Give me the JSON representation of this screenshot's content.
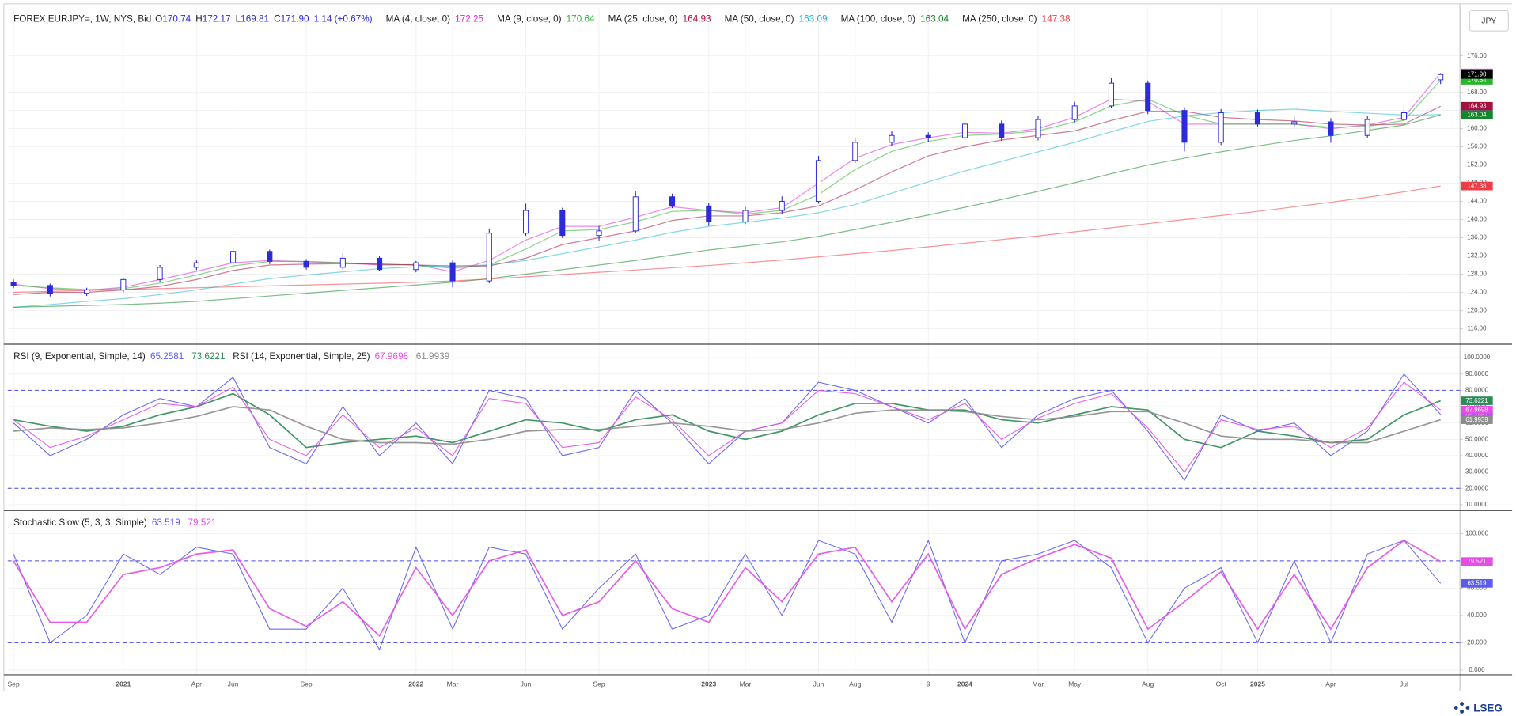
{
  "chart_data": [
    {
      "type": "candlestick",
      "title": "FOREX EURJPY=, 1W, NYS, Bid",
      "ohlc_labels": [
        {
          "prefix": "O",
          "value": "170.74"
        },
        {
          "prefix": "H",
          "value": "172.17"
        },
        {
          "prefix": "L",
          "value": "169.81"
        },
        {
          "prefix": "C",
          "value": "171.90"
        }
      ],
      "change": "1.14 (+0.67%)",
      "currency": "JPY",
      "categories": [
        "Sep",
        null,
        null,
        "2021",
        null,
        "Apr",
        "Jun",
        null,
        "Sep",
        null,
        null,
        "2022",
        "Mar",
        null,
        "Jun",
        null,
        "Sep",
        null,
        null,
        "2023",
        "Mar",
        null,
        "Jun",
        "Aug",
        null,
        "9",
        "2024",
        null,
        "Mar",
        "May",
        null,
        "Aug",
        null,
        "Oct",
        "2025",
        null,
        "Apr",
        null,
        "Jul",
        null
      ],
      "open": [
        126.2,
        125.5,
        123.8,
        124.5,
        126.8,
        129.5,
        130.5,
        133,
        130.8,
        129.5,
        131.5,
        129,
        130.5,
        126.5,
        137,
        142,
        136.5,
        137.5,
        145,
        143,
        139.5,
        142,
        144,
        153,
        157,
        158.5,
        158,
        161,
        158,
        162,
        165,
        170,
        164,
        157,
        163.5,
        161,
        161.5,
        158.5,
        162,
        170.74
      ],
      "high": [
        126.8,
        125.9,
        125,
        127.2,
        130,
        131.2,
        133.8,
        133.4,
        131.3,
        132.6,
        131.9,
        130.9,
        131,
        137.9,
        143.5,
        142.6,
        138.6,
        146.2,
        145.7,
        143.6,
        142.8,
        145.1,
        154,
        157.8,
        159.4,
        159.2,
        162,
        161.8,
        162.8,
        165.9,
        171.2,
        170.6,
        164.7,
        164.3,
        164.2,
        162.6,
        162.3,
        162.9,
        164.5,
        172.17
      ],
      "low": [
        124.9,
        123.1,
        123.2,
        124,
        126.2,
        128.9,
        129.8,
        130.2,
        129,
        129,
        128.6,
        128.4,
        125.1,
        126,
        136.4,
        135.9,
        135.4,
        137,
        142.5,
        138.6,
        139,
        141.2,
        143.5,
        152.4,
        156.2,
        157.1,
        157.5,
        157.3,
        157.4,
        161.4,
        164.6,
        163.2,
        155,
        156.4,
        160.5,
        160.4,
        156.9,
        157.9,
        161.6,
        169.81
      ],
      "close": [
        125.5,
        123.8,
        124.5,
        126.8,
        129.5,
        130.5,
        133,
        130.8,
        129.5,
        131.5,
        129,
        130.5,
        126.5,
        137,
        142,
        136.5,
        137.5,
        145,
        143,
        139.5,
        142,
        144,
        153,
        157,
        158.5,
        158,
        161,
        158,
        162,
        165,
        170,
        164,
        157,
        163.5,
        161,
        161.5,
        158.5,
        162,
        163.5,
        171.9
      ],
      "color": "#2b2bd9",
      "overlays": [
        {
          "name": "MA (4, close, 0)",
          "color": "#e024e0",
          "values": [
            125.8,
            124.8,
            124.4,
            125.1,
            126.8,
            128.6,
            130.5,
            131,
            130.7,
            130.5,
            130,
            130.1,
            128.5,
            131,
            135.5,
            138.5,
            138.5,
            140.5,
            142.8,
            142,
            141.5,
            142.6,
            148,
            153.5,
            156.5,
            158,
            159.2,
            159,
            160,
            162.5,
            166.5,
            166,
            161,
            161,
            161,
            161,
            160,
            160.8,
            162.5,
            172.25
          ]
        },
        {
          "name": "MA (9, close, 0)",
          "color": "#2bb52b",
          "values": [
            125.5,
            125,
            124.6,
            124.8,
            126,
            127.8,
            129.8,
            130.8,
            130.8,
            130.5,
            130.2,
            130,
            129.3,
            130,
            133.5,
            137.5,
            137.8,
            139.5,
            141.8,
            142,
            141.2,
            142,
            145.5,
            151,
            155,
            157.2,
            158.5,
            158.8,
            159.5,
            161.5,
            165,
            166.5,
            163,
            161,
            161,
            161,
            160.3,
            160.5,
            161.8,
            170.64
          ]
        },
        {
          "name": "MA (25, close, 0)",
          "color": "#a5123c",
          "values": [
            123.5,
            124,
            124,
            124.5,
            125.3,
            126.8,
            128.8,
            130,
            130.2,
            130.3,
            130.2,
            130,
            129.8,
            129.8,
            131.5,
            134.5,
            136,
            137.5,
            139.8,
            140.8,
            140.8,
            141.5,
            143,
            146.5,
            150.5,
            154,
            156,
            157.5,
            158.5,
            159.5,
            161.8,
            163.8,
            163.8,
            162.5,
            162,
            161.7,
            161,
            160.8,
            161,
            164.93
          ]
        },
        {
          "name": "MA (50, close, 0)",
          "color": "#1fb8cc",
          "values": [
            120.7,
            121.3,
            122,
            122.6,
            123.5,
            124.5,
            125.8,
            127,
            127.8,
            128.5,
            129.2,
            129.6,
            129.8,
            130,
            131,
            132.5,
            134,
            135.5,
            137.2,
            138.5,
            139.4,
            140.3,
            141.5,
            143.3,
            145.8,
            148.3,
            150.7,
            152.8,
            154.9,
            157,
            159.3,
            161.6,
            162.8,
            163.5,
            164,
            164.3,
            163.8,
            163.4,
            163,
            163.09
          ]
        },
        {
          "name": "MA (100, close, 0)",
          "color": "#13862a",
          "values": [
            120.7,
            120.9,
            121.1,
            121.3,
            121.6,
            122,
            122.6,
            123.2,
            123.8,
            124.4,
            125,
            125.6,
            126.2,
            127,
            128,
            129,
            130,
            131,
            132.2,
            133.3,
            134.2,
            135.1,
            136.3,
            137.8,
            139.4,
            141,
            142.7,
            144.4,
            146.2,
            148.1,
            150.1,
            152,
            153.5,
            154.9,
            156.2,
            157.4,
            158.4,
            159.6,
            160.8,
            163.04
          ]
        },
        {
          "name": "MA (250, close, 0)",
          "color": "#ee3c46",
          "values": [
            124,
            124.2,
            124.4,
            124.6,
            124.8,
            125,
            125.2,
            125.4,
            125.6,
            125.8,
            126,
            126.2,
            126.5,
            126.9,
            127.4,
            127.9,
            128.4,
            128.9,
            129.4,
            129.9,
            130.5,
            131.1,
            131.8,
            132.5,
            133.2,
            134,
            134.8,
            135.6,
            136.4,
            137.3,
            138.2,
            139.1,
            140,
            140.9,
            141.8,
            142.8,
            143.8,
            144.9,
            146.1,
            147.38
          ]
        }
      ],
      "ylim": [
        112.8,
        186.6
      ],
      "yticks": [
        {
          "value": 116,
          "label": "116.00"
        },
        {
          "value": 120,
          "label": "120.00"
        },
        {
          "value": 124,
          "label": "124.00"
        },
        {
          "value": 128,
          "label": "128.00"
        },
        {
          "value": 132,
          "label": "132.00"
        },
        {
          "value": 136,
          "label": "136.00"
        },
        {
          "value": 140,
          "label": "140.00"
        },
        {
          "value": 144,
          "label": "144.00"
        },
        {
          "value": 148,
          "label": "148.00"
        },
        {
          "value": 152,
          "label": "152.00"
        },
        {
          "value": 156,
          "label": "156.00"
        },
        {
          "value": 160,
          "label": "160.00"
        },
        {
          "value": 164,
          "label": "164.00"
        },
        {
          "value": 168,
          "label": "168.00"
        },
        {
          "value": 172,
          "label": "172.00"
        },
        {
          "value": 176,
          "label": "176.00"
        }
      ],
      "grid": true
    },
    {
      "type": "line",
      "series": [
        {
          "name": "RSI (9, Exponential, Simple, 14)",
          "color": "#5b5bf0",
          "values": [
            60,
            40,
            50,
            65,
            75,
            70,
            88,
            45,
            35,
            70,
            40,
            60,
            35,
            80,
            75,
            40,
            45,
            80,
            60,
            35,
            55,
            60,
            85,
            80,
            70,
            60,
            75,
            45,
            65,
            75,
            80,
            55,
            25,
            65,
            55,
            60,
            40,
            55,
            90,
            65.2581
          ]
        },
        {
          "color": "#2e8b57",
          "values": [
            62,
            58,
            55,
            58,
            65,
            70,
            78,
            65,
            45,
            48,
            50,
            52,
            48,
            55,
            62,
            60,
            55,
            62,
            65,
            55,
            50,
            55,
            65,
            72,
            72,
            68,
            68,
            62,
            60,
            65,
            70,
            68,
            50,
            45,
            55,
            52,
            48,
            50,
            65,
            73.6221
          ]
        },
        {
          "name": "RSI (14, Exponential, Simple, 25)",
          "color": "#e64ce6",
          "values": [
            62,
            45,
            52,
            62,
            72,
            70,
            82,
            50,
            40,
            65,
            45,
            57,
            40,
            75,
            72,
            45,
            48,
            76,
            62,
            40,
            55,
            60,
            80,
            78,
            70,
            62,
            72,
            50,
            63,
            72,
            78,
            57,
            30,
            62,
            56,
            58,
            45,
            57,
            85,
            67.9698
          ]
        },
        {
          "color": "#8c8c8c",
          "values": [
            55,
            57,
            56,
            57,
            60,
            64,
            70,
            68,
            58,
            50,
            48,
            48,
            47,
            50,
            55,
            56,
            56,
            58,
            60,
            58,
            55,
            56,
            60,
            66,
            68,
            68,
            67,
            64,
            62,
            64,
            67,
            67,
            60,
            52,
            50,
            50,
            48,
            48,
            55,
            61.9939
          ]
        }
      ],
      "hlines": [
        80,
        20
      ],
      "ylim": [
        7.05,
        107.1
      ],
      "yticks": [
        {
          "value": 10,
          "label": "10.0000"
        },
        {
          "value": 20,
          "label": "20.0000"
        },
        {
          "value": 30,
          "label": "30.0000"
        },
        {
          "value": 40,
          "label": "40.0000"
        },
        {
          "value": 50,
          "label": "50.0000"
        },
        {
          "value": 60,
          "label": "60.0000"
        },
        {
          "value": 70,
          "label": "70.0000"
        },
        {
          "value": 80,
          "label": "80.0000"
        },
        {
          "value": 90,
          "label": "90.0000"
        },
        {
          "value": 100,
          "label": "100.0000"
        }
      ],
      "grid": true
    },
    {
      "type": "line",
      "series": [
        {
          "name": "Stochastic Slow (5, 3, 3, Simple)",
          "color": "#5b5bf0",
          "values": [
            85,
            20,
            40,
            85,
            70,
            90,
            85,
            30,
            30,
            60,
            15,
            90,
            30,
            90,
            85,
            30,
            60,
            85,
            30,
            40,
            85,
            40,
            95,
            85,
            35,
            95,
            20,
            80,
            85,
            95,
            75,
            20,
            60,
            75,
            20,
            80,
            20,
            85,
            95,
            63.519
          ]
        },
        {
          "color": "#e64ce6",
          "values": [
            80,
            35,
            35,
            70,
            75,
            85,
            88,
            45,
            32,
            50,
            25,
            75,
            40,
            80,
            88,
            40,
            50,
            80,
            45,
            35,
            75,
            50,
            85,
            90,
            50,
            85,
            30,
            70,
            82,
            92,
            82,
            30,
            50,
            72,
            30,
            70,
            30,
            75,
            95,
            79.521
          ]
        }
      ],
      "hlines": [
        80,
        20
      ],
      "ylim": [
        -2.8,
        115.5
      ],
      "yticks": [
        {
          "value": 0,
          "label": "0.000"
        },
        {
          "value": 20,
          "label": "20.000"
        },
        {
          "value": 40,
          "label": "40.000"
        },
        {
          "value": 60,
          "label": "60.000"
        },
        {
          "value": 80,
          "label": "80.000"
        },
        {
          "value": 100,
          "label": "100.000"
        }
      ],
      "grid": true
    }
  ],
  "brand": "LSEG"
}
